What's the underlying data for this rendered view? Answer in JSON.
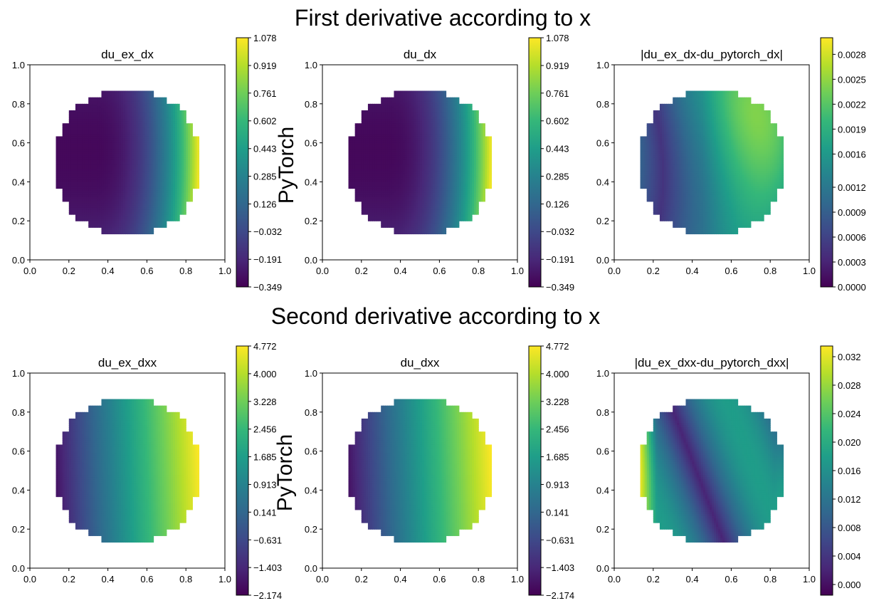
{
  "figure": {
    "row_titles": [
      "First derivative according to x",
      "Second derivative according to x"
    ],
    "side_label": "PyTorch"
  },
  "colormap": [
    "#440154",
    "#482878",
    "#3e4989",
    "#31688e",
    "#26828e",
    "#1f9e89",
    "#35b779",
    "#6ece58",
    "#b5de2b",
    "#fde725"
  ],
  "chart_data": [
    {
      "type": "heatmap",
      "title": "du_ex_dx",
      "xlim": [
        0,
        1
      ],
      "ylim": [
        0,
        1
      ],
      "xticks": [
        "0.0",
        "0.2",
        "0.4",
        "0.6",
        "0.8",
        "1.0"
      ],
      "yticks": [
        "0.0",
        "0.2",
        "0.4",
        "0.6",
        "0.8",
        "1.0"
      ],
      "colorbar_ticks": [
        "1.078",
        "0.919",
        "0.761",
        "0.602",
        "0.443",
        "0.285",
        "0.126",
        "−0.032",
        "−0.191",
        "−0.349"
      ],
      "range": [
        -0.349,
        1.078
      ],
      "field": "dx"
    },
    {
      "type": "heatmap",
      "title": "du_dx",
      "xlim": [
        0,
        1
      ],
      "ylim": [
        0,
        1
      ],
      "xticks": [
        "0.0",
        "0.2",
        "0.4",
        "0.6",
        "0.8",
        "1.0"
      ],
      "yticks": [
        "0.0",
        "0.2",
        "0.4",
        "0.6",
        "0.8",
        "1.0"
      ],
      "colorbar_ticks": [
        "1.078",
        "0.919",
        "0.761",
        "0.602",
        "0.443",
        "0.285",
        "0.126",
        "−0.032",
        "−0.191",
        "−0.349"
      ],
      "range": [
        -0.349,
        1.078
      ],
      "field": "dx"
    },
    {
      "type": "heatmap",
      "title": "|du_ex_dx-du_pytorch_dx|",
      "xlim": [
        0,
        1
      ],
      "ylim": [
        0,
        1
      ],
      "xticks": [
        "0.0",
        "0.2",
        "0.4",
        "0.6",
        "0.8",
        "1.0"
      ],
      "yticks": [
        "0.0",
        "0.2",
        "0.4",
        "0.6",
        "0.8",
        "1.0"
      ],
      "colorbar_ticks": [
        "0.0028",
        "0.0025",
        "0.0022",
        "0.0019",
        "0.0016",
        "0.0012",
        "0.0009",
        "0.0006",
        "0.0003",
        "0.0000"
      ],
      "range": [
        0,
        0.003
      ],
      "field": "err_dx"
    },
    {
      "type": "heatmap",
      "title": "du_ex_dxx",
      "xlim": [
        0,
        1
      ],
      "ylim": [
        0,
        1
      ],
      "xticks": [
        "0.0",
        "0.2",
        "0.4",
        "0.6",
        "0.8",
        "1.0"
      ],
      "yticks": [
        "0.0",
        "0.2",
        "0.4",
        "0.6",
        "0.8",
        "1.0"
      ],
      "colorbar_ticks": [
        "4.772",
        "4.000",
        "3.228",
        "2.456",
        "1.685",
        "0.913",
        "0.141",
        "−0.631",
        "−1.403",
        "−2.174"
      ],
      "range": [
        -2.174,
        4.772
      ],
      "field": "dxx"
    },
    {
      "type": "heatmap",
      "title": "du_dxx",
      "xlim": [
        0,
        1
      ],
      "ylim": [
        0,
        1
      ],
      "xticks": [
        "0.0",
        "0.2",
        "0.4",
        "0.6",
        "0.8",
        "1.0"
      ],
      "yticks": [
        "0.0",
        "0.2",
        "0.4",
        "0.6",
        "0.8",
        "1.0"
      ],
      "colorbar_ticks": [
        "4.772",
        "4.000",
        "3.228",
        "2.456",
        "1.685",
        "0.913",
        "0.141",
        "−0.631",
        "−1.403",
        "−2.174"
      ],
      "range": [
        -2.174,
        4.772
      ],
      "field": "dxx"
    },
    {
      "type": "heatmap",
      "title": "|du_ex_dxx-du_pytorch_dxx|",
      "xlim": [
        0,
        1
      ],
      "ylim": [
        0,
        1
      ],
      "xticks": [
        "0.0",
        "0.2",
        "0.4",
        "0.6",
        "0.8",
        "1.0"
      ],
      "yticks": [
        "0.0",
        "0.2",
        "0.4",
        "0.6",
        "0.8",
        "1.0"
      ],
      "colorbar_ticks": [
        "0.032",
        "0.028",
        "0.024",
        "0.020",
        "0.016",
        "0.012",
        "0.008",
        "0.004",
        "0.000"
      ],
      "range": [
        -0.0015,
        0.0335
      ],
      "field": "err_dxx"
    }
  ]
}
